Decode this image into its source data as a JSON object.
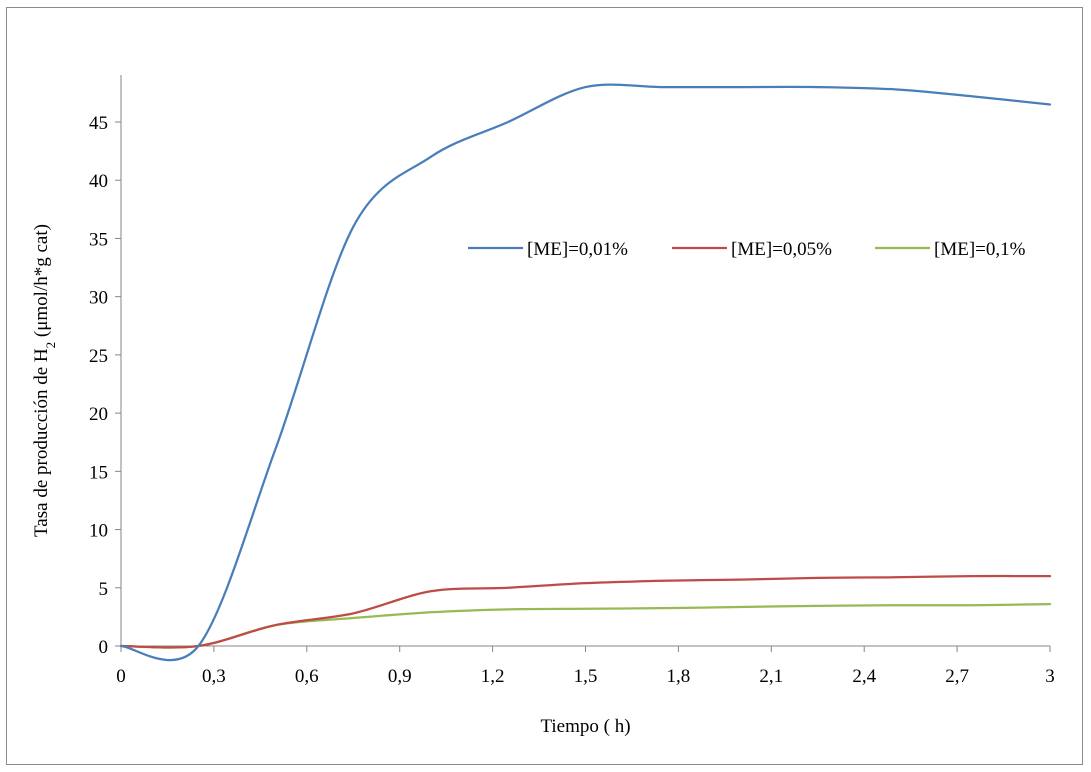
{
  "chart_data": {
    "type": "line",
    "xlabel": "Tiempo ( h)",
    "ylabel": {
      "prefix": "Tasa de producción de H",
      "subscript": "2",
      "suffix": " (μmol/h*g cat)"
    },
    "xlim": [
      0,
      3
    ],
    "ylim": [
      0,
      48
    ],
    "x_ticks": [
      0,
      0.3,
      0.6,
      0.9,
      1.2,
      1.5,
      1.8,
      2.1,
      2.4,
      2.7,
      3
    ],
    "x_tick_labels": [
      "0",
      "0,3",
      "0,6",
      "0,9",
      "1,2",
      "1,5",
      "1,8",
      "2,1",
      "2,4",
      "2,7",
      "3"
    ],
    "y_ticks": [
      0,
      5,
      10,
      15,
      20,
      25,
      30,
      35,
      40,
      45
    ],
    "y_tick_labels": [
      "0",
      "5",
      "10",
      "15",
      "20",
      "25",
      "30",
      "35",
      "40",
      "45"
    ],
    "grid": false,
    "legend_position": "inside-right",
    "series": [
      {
        "name": "[ME]=0,01%",
        "color": "#4a7ebb",
        "points": [
          [
            0,
            0
          ],
          [
            0.25,
            0
          ],
          [
            0.5,
            17
          ],
          [
            0.75,
            36
          ],
          [
            1.0,
            42
          ],
          [
            1.25,
            45
          ],
          [
            1.5,
            48
          ],
          [
            1.75,
            48
          ],
          [
            2.0,
            48
          ],
          [
            2.25,
            48
          ],
          [
            2.5,
            47.8
          ],
          [
            2.75,
            47.2
          ],
          [
            3.0,
            46.5
          ]
        ]
      },
      {
        "name": "[ME]=0,05%",
        "color": "#be4b48",
        "points": [
          [
            0,
            0
          ],
          [
            0.25,
            0
          ],
          [
            0.5,
            1.8
          ],
          [
            0.75,
            2.8
          ],
          [
            1.0,
            4.7
          ],
          [
            1.25,
            5.0
          ],
          [
            1.5,
            5.4
          ],
          [
            1.75,
            5.6
          ],
          [
            2.0,
            5.7
          ],
          [
            2.25,
            5.85
          ],
          [
            2.5,
            5.9
          ],
          [
            2.75,
            6.0
          ],
          [
            3.0,
            6.0
          ]
        ]
      },
      {
        "name": "[ME]=0,1%",
        "color": "#98b954",
        "points": [
          [
            0,
            0
          ],
          [
            0.25,
            0
          ],
          [
            0.5,
            1.8
          ],
          [
            0.75,
            2.4
          ],
          [
            1.0,
            2.9
          ],
          [
            1.25,
            3.15
          ],
          [
            1.5,
            3.2
          ],
          [
            1.75,
            3.25
          ],
          [
            2.0,
            3.35
          ],
          [
            2.25,
            3.45
          ],
          [
            2.5,
            3.5
          ],
          [
            2.75,
            3.5
          ],
          [
            3.0,
            3.6
          ]
        ]
      }
    ]
  }
}
